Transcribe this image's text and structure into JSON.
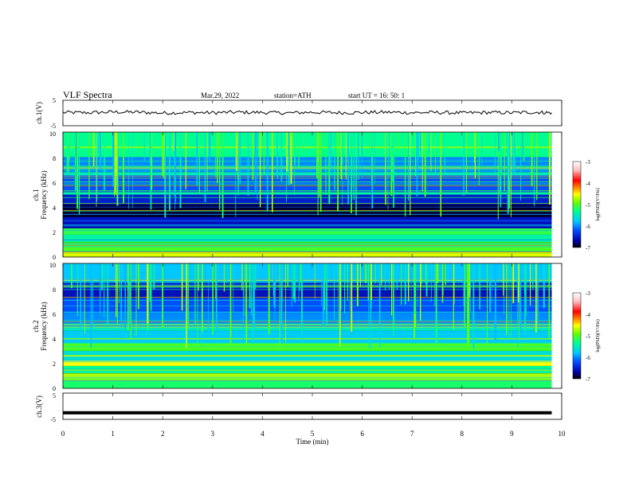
{
  "header": {
    "title": "VLF  Spectra",
    "date": "Mar.29, 2022",
    "station": "station=ATH",
    "start_ut": "start  UT  =   16: 50: 1"
  },
  "colorbar": {
    "label": "log(PSD)(V²/Hz)",
    "ticks": [
      "-3",
      "-4",
      "-5",
      "-6",
      "-7"
    ],
    "colors": [
      "#000000",
      "#0000aa",
      "#0050ff",
      "#00c8ff",
      "#00ff90",
      "#60ff00",
      "#ffff00",
      "#ff8000",
      "#ff0000",
      "#ffc0c0",
      "#ffffff"
    ]
  },
  "chart_data": [
    {
      "type": "line",
      "panel": "ch1-waveform",
      "ylabel": "ch.1(V)",
      "yticks": [
        "5",
        "-5"
      ],
      "ylim": [
        -5,
        5
      ],
      "xlim": [
        0,
        10
      ],
      "series": [
        {
          "x": [
            0,
            0.5,
            1,
            1.5,
            2,
            2.5,
            3,
            3.5,
            4,
            4.5,
            5,
            5.5,
            6,
            6.5,
            7,
            7.5,
            8,
            8.5,
            9,
            9.5,
            9.8
          ],
          "values": [
            0.2,
            0.1,
            0.4,
            0.3,
            0.0,
            0.2,
            0.1,
            0.3,
            0.2,
            0.0,
            0.3,
            0.1,
            0.2,
            0.3,
            0.1,
            0.2,
            0.0,
            0.2,
            0.1,
            0.3,
            0.1
          ]
        }
      ]
    },
    {
      "type": "heatmap",
      "panel": "ch1-spectrogram",
      "ylabel_top": "ch.1",
      "ylabel": "Frequency  (kHz)",
      "yticks": [
        "10",
        "8",
        "6",
        "4",
        "2",
        "0"
      ],
      "ylim": [
        0,
        10
      ],
      "xlim": [
        0,
        9.8
      ],
      "color_scale": [
        -7,
        -3
      ],
      "bands": [
        {
          "from": 0.0,
          "to": 0.4,
          "value": -4.6
        },
        {
          "from": 0.4,
          "to": 1.2,
          "value": -5.0
        },
        {
          "from": 1.2,
          "to": 1.8,
          "value": -5.4
        },
        {
          "from": 1.8,
          "to": 2.3,
          "value": -5.1
        },
        {
          "from": 2.3,
          "to": 3.2,
          "value": -6.6
        },
        {
          "from": 3.2,
          "to": 4.2,
          "value": -6.9
        },
        {
          "from": 4.2,
          "to": 5.0,
          "value": -6.5
        },
        {
          "from": 5.0,
          "to": 5.2,
          "value": -5.4
        },
        {
          "from": 5.2,
          "to": 6.5,
          "value": -6.2
        },
        {
          "from": 6.5,
          "to": 6.8,
          "value": -5.5
        },
        {
          "from": 6.8,
          "to": 8.0,
          "value": -6.0
        },
        {
          "from": 8.0,
          "to": 10.0,
          "value": -5.3
        }
      ]
    },
    {
      "type": "heatmap",
      "panel": "ch2-spectrogram",
      "ylabel_top": "ch.2",
      "ylabel": "Frequency  (kHz)",
      "yticks": [
        "10",
        "8",
        "6",
        "4",
        "2",
        "0"
      ],
      "ylim": [
        0,
        10
      ],
      "xlim": [
        0,
        9.8
      ],
      "color_scale": [
        -7,
        -3
      ],
      "bands": [
        {
          "from": 0.0,
          "to": 0.6,
          "value": -5.2
        },
        {
          "from": 0.6,
          "to": 1.2,
          "value": -4.7
        },
        {
          "from": 1.2,
          "to": 1.8,
          "value": -5.3
        },
        {
          "from": 1.8,
          "to": 2.2,
          "value": -4.5
        },
        {
          "from": 2.2,
          "to": 3.0,
          "value": -5.6
        },
        {
          "from": 3.0,
          "to": 3.6,
          "value": -5.0
        },
        {
          "from": 3.6,
          "to": 4.6,
          "value": -5.8
        },
        {
          "from": 4.6,
          "to": 5.2,
          "value": -5.5
        },
        {
          "from": 5.2,
          "to": 6.2,
          "value": -6.0
        },
        {
          "from": 6.2,
          "to": 7.2,
          "value": -6.2
        },
        {
          "from": 7.2,
          "to": 8.5,
          "value": -6.6
        },
        {
          "from": 8.5,
          "to": 10.0,
          "value": -5.8
        }
      ]
    },
    {
      "type": "line",
      "panel": "ch3-waveform",
      "ylabel": "ch.3(V)",
      "yticks": [
        "5",
        "-5"
      ],
      "ylim": [
        -5,
        5
      ],
      "xlim": [
        0,
        10
      ],
      "series": [
        {
          "x": [
            0,
            9.8
          ],
          "values": [
            -2.5,
            -2.5
          ]
        }
      ]
    }
  ],
  "x_axis": {
    "label": "Time  (min)",
    "ticks": [
      "0",
      "1",
      "2",
      "3",
      "4",
      "5",
      "6",
      "7",
      "8",
      "9",
      "10"
    ]
  }
}
